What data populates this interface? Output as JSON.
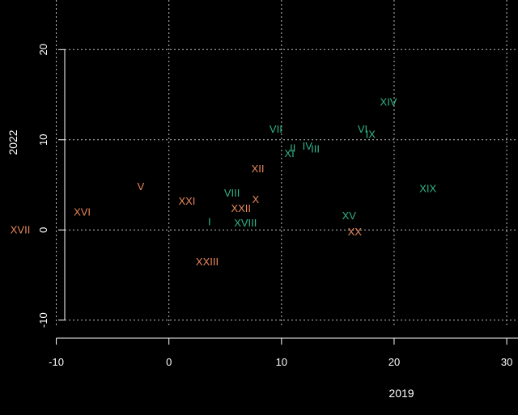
{
  "chart_data": {
    "type": "scatter",
    "title": "",
    "xlabel": "2019",
    "ylabel": "2022",
    "xlim": [
      -15,
      31
    ],
    "ylim": [
      -12,
      25.5
    ],
    "x_ticks": [
      -10,
      0,
      10,
      20,
      30
    ],
    "y_ticks": [
      -10,
      0,
      10,
      20
    ],
    "grid": true,
    "background": "#000000",
    "grid_color": "#bfbfbf",
    "series": [
      {
        "color": "#e8875a",
        "points": [
          {
            "label": "V",
            "x": -2.5,
            "y": 4.8
          },
          {
            "label": "X",
            "x": 7.7,
            "y": 3.4
          },
          {
            "label": "XII",
            "x": 7.9,
            "y": 6.8
          },
          {
            "label": "XVI",
            "x": -7.7,
            "y": 2.0
          },
          {
            "label": "XVII",
            "x": -13.2,
            "y": 0.0
          },
          {
            "label": "XX",
            "x": 16.5,
            "y": -0.2
          },
          {
            "label": "XXI",
            "x": 1.6,
            "y": 3.2
          },
          {
            "label": "XXII",
            "x": 6.4,
            "y": 2.4
          },
          {
            "label": "XXIII",
            "x": 3.4,
            "y": -3.5
          }
        ]
      },
      {
        "color": "#2fb38a",
        "points": [
          {
            "label": "I",
            "x": 3.6,
            "y": 0.9
          },
          {
            "label": "II",
            "x": 11.0,
            "y": 9.1
          },
          {
            "label": "III",
            "x": 13.0,
            "y": 9.0
          },
          {
            "label": "IV",
            "x": 12.3,
            "y": 9.3
          },
          {
            "label": "VI",
            "x": 17.2,
            "y": 11.2
          },
          {
            "label": "VII",
            "x": 9.5,
            "y": 11.2
          },
          {
            "label": "VIII",
            "x": 5.6,
            "y": 4.1
          },
          {
            "label": "IX",
            "x": 17.9,
            "y": 10.6
          },
          {
            "label": "XI",
            "x": 10.7,
            "y": 8.5
          },
          {
            "label": "XIV",
            "x": 19.5,
            "y": 14.2
          },
          {
            "label": "XV",
            "x": 16.0,
            "y": 1.6
          },
          {
            "label": "XVIII",
            "x": 6.8,
            "y": 0.8
          },
          {
            "label": "XIX",
            "x": 23.0,
            "y": 4.6
          }
        ]
      }
    ]
  }
}
